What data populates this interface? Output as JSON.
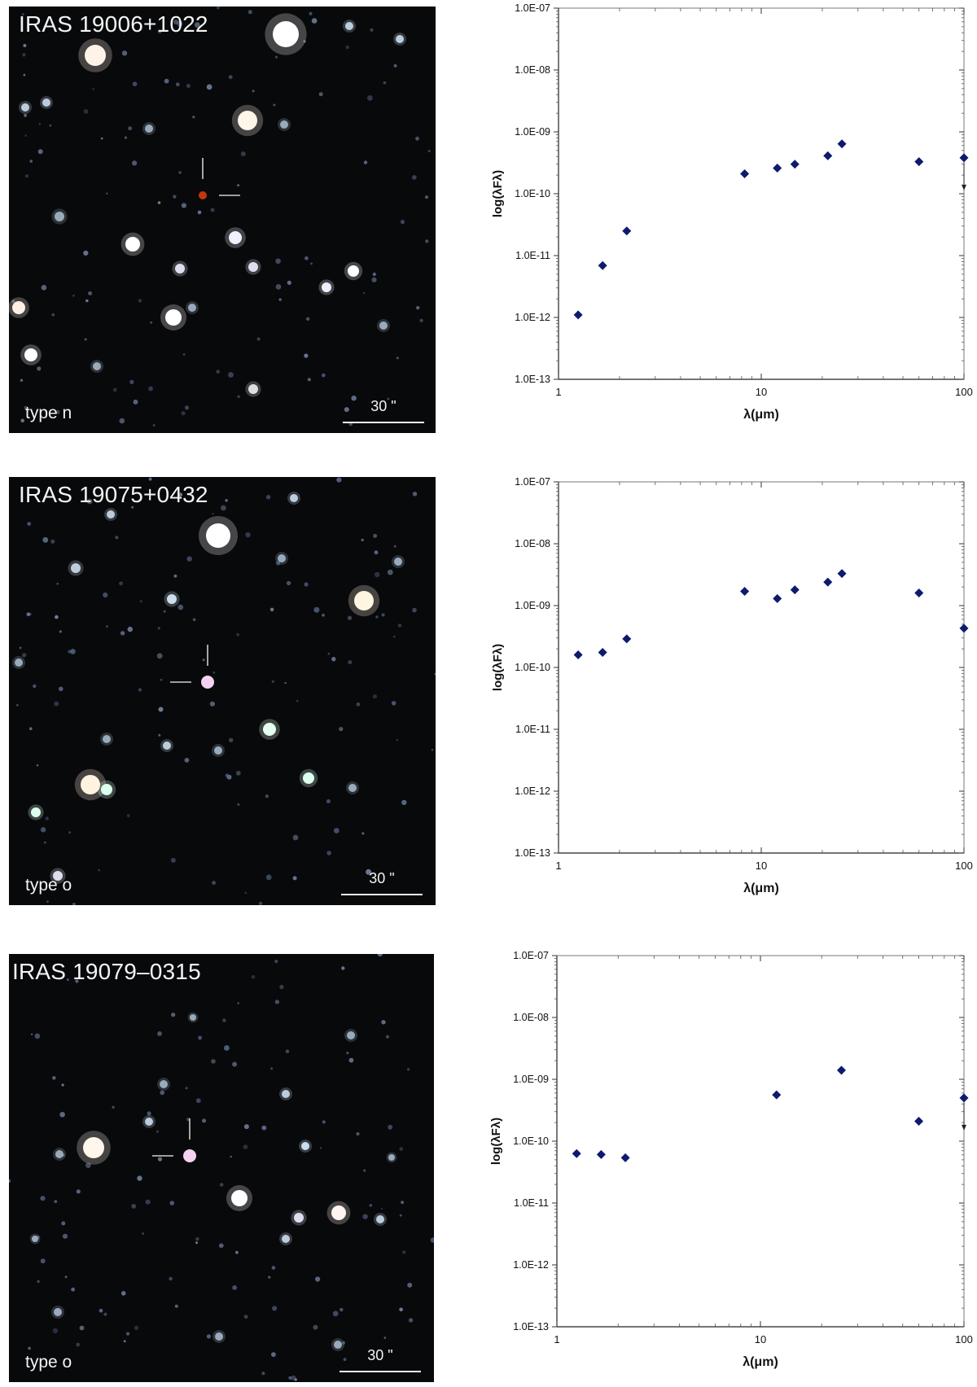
{
  "panels": [
    {
      "object_name": "IRAS 19006+1022",
      "type_label": "type n",
      "scale_label": "30 \"",
      "chart_data": {
        "type": "scatter",
        "xlabel": "λ(μm)",
        "ylabel": "log(λFλ)",
        "x_scale": "log",
        "y_scale": "log",
        "xlim": [
          1,
          100
        ],
        "ylim": [
          1e-13,
          1e-07
        ],
        "x_ticks": [
          "1",
          "10",
          "100"
        ],
        "y_ticks": [
          "1.0E-13",
          "1.0E-12",
          "1.0E-11",
          "1.0E-10",
          "1.0E-09",
          "1.0E-08",
          "1.0E-07"
        ],
        "marker_color": "#0d1a6e",
        "points": [
          {
            "x": 1.25,
            "y": 1.1e-12
          },
          {
            "x": 1.65,
            "y": 6.9e-12
          },
          {
            "x": 2.17,
            "y": 2.5e-11
          },
          {
            "x": 8.28,
            "y": 2.1e-10
          },
          {
            "x": 12,
            "y": 2.6e-10
          },
          {
            "x": 14.65,
            "y": 3e-10
          },
          {
            "x": 21.3,
            "y": 4.1e-10
          },
          {
            "x": 25,
            "y": 6.4e-10
          },
          {
            "x": 60,
            "y": 3.3e-10
          },
          {
            "x": 100,
            "y": 3.8e-10,
            "upper_limit": true
          }
        ]
      }
    },
    {
      "object_name": "IRAS 19075+0432",
      "type_label": "type o",
      "scale_label": "30 \"",
      "chart_data": {
        "type": "scatter",
        "xlabel": "λ(μm)",
        "ylabel": "log(λFλ)",
        "x_scale": "log",
        "y_scale": "log",
        "xlim": [
          1,
          100
        ],
        "ylim": [
          1e-13,
          1e-07
        ],
        "x_ticks": [
          "1",
          "10",
          "100"
        ],
        "y_ticks": [
          "1.0E-13",
          "1.0E-12",
          "1.0E-11",
          "1.0E-10",
          "1.0E-09",
          "1.0E-08",
          "1.0E-07"
        ],
        "marker_color": "#0d1a6e",
        "points": [
          {
            "x": 1.25,
            "y": 1.6e-10
          },
          {
            "x": 1.65,
            "y": 1.75e-10
          },
          {
            "x": 2.17,
            "y": 2.9e-10
          },
          {
            "x": 8.28,
            "y": 1.7e-09
          },
          {
            "x": 12,
            "y": 1.3e-09
          },
          {
            "x": 14.65,
            "y": 1.8e-09
          },
          {
            "x": 21.3,
            "y": 2.4e-09
          },
          {
            "x": 25,
            "y": 3.3e-09
          },
          {
            "x": 60,
            "y": 1.6e-09
          },
          {
            "x": 100,
            "y": 4.3e-10
          }
        ]
      }
    },
    {
      "object_name": "IRAS 19079–0315",
      "type_label": "type o",
      "scale_label": "30 \"",
      "chart_data": {
        "type": "scatter",
        "xlabel": "λ(μm)",
        "ylabel": "log(λFλ)",
        "x_scale": "log",
        "y_scale": "log",
        "xlim": [
          1,
          100
        ],
        "ylim": [
          1e-13,
          1e-07
        ],
        "x_ticks": [
          "1",
          "10",
          "100"
        ],
        "y_ticks": [
          "1.0E-13",
          "1.0E-12",
          "1.0E-11",
          "1.0E-10",
          "1.0E-09",
          "1.0E-08",
          "1.0E-07"
        ],
        "marker_color": "#0d1a6e",
        "points": [
          {
            "x": 1.25,
            "y": 6.3e-11
          },
          {
            "x": 1.65,
            "y": 6.1e-11
          },
          {
            "x": 2.17,
            "y": 5.4e-11
          },
          {
            "x": 12,
            "y": 5.6e-10
          },
          {
            "x": 25,
            "y": 1.4e-09
          },
          {
            "x": 60,
            "y": 2.1e-10
          },
          {
            "x": 100,
            "y": 5e-10,
            "upper_limit": true
          }
        ]
      }
    }
  ]
}
